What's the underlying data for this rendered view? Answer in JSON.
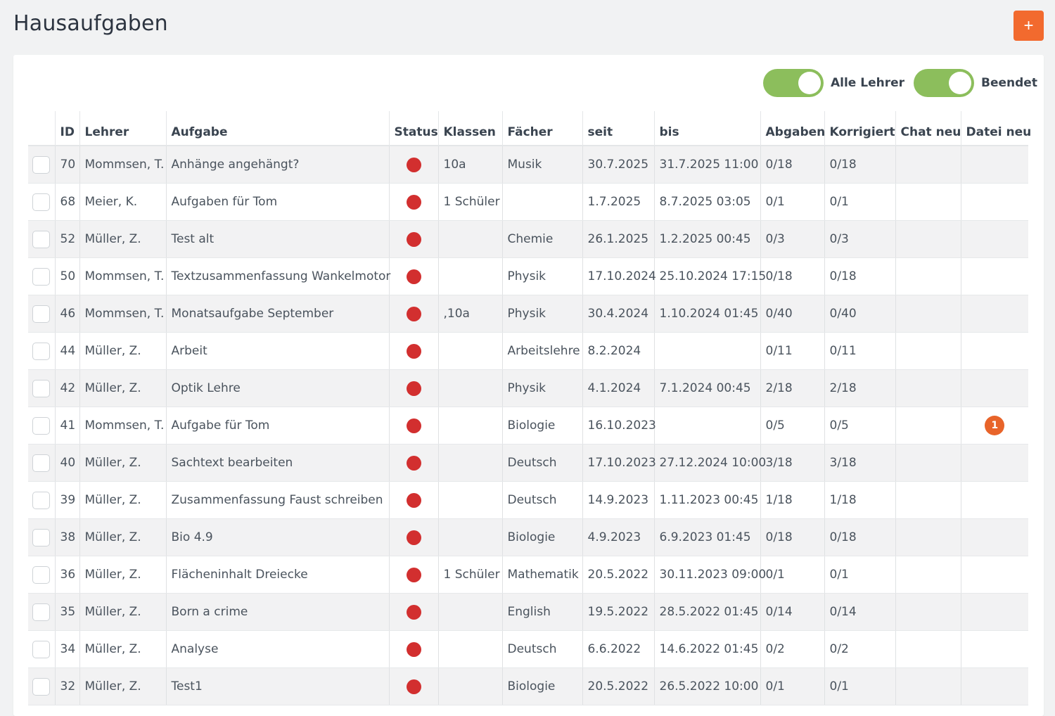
{
  "page": {
    "title": "Hausaufgaben",
    "add_button_label": "+",
    "accent_color": "#f26a2e"
  },
  "filters": {
    "all_teachers": {
      "label": "Alle Lehrer",
      "on": true
    },
    "finished": {
      "label": "Beendet",
      "on": true
    },
    "toggle_color": "#8cbe5c"
  },
  "table": {
    "columns": [
      "",
      "ID",
      "Lehrer",
      "Aufgabe",
      "Status",
      "Klassen",
      "Fächer",
      "seit",
      "bis",
      "Abgaben",
      "Korrigiert",
      "Chat neu",
      "Datei neu"
    ],
    "status_color": "#d22f2f",
    "badge_color": "#e8642a",
    "rows": [
      {
        "id": "70",
        "teacher": "Mommsen, T.",
        "task": "Anhänge angehängt?",
        "classes": "10a",
        "subjects": "Musik",
        "since": "30.7.2025",
        "until": "31.7.2025 11:00",
        "submissions": "0/18",
        "corrected": "0/18",
        "chat_new": "",
        "file_new": ""
      },
      {
        "id": "68",
        "teacher": "Meier, K.",
        "task": "Aufgaben für Tom",
        "classes": "1 Schüler",
        "subjects": "",
        "since": "1.7.2025",
        "until": "8.7.2025 03:05",
        "submissions": "0/1",
        "corrected": "0/1",
        "chat_new": "",
        "file_new": ""
      },
      {
        "id": "52",
        "teacher": "Müller, Z.",
        "task": "Test alt",
        "classes": "",
        "subjects": "Chemie",
        "since": "26.1.2025",
        "until": "1.2.2025 00:45",
        "submissions": "0/3",
        "corrected": "0/3",
        "chat_new": "",
        "file_new": ""
      },
      {
        "id": "50",
        "teacher": "Mommsen, T.",
        "task": "Textzusammenfassung Wankelmotor",
        "classes": "",
        "subjects": "Physik",
        "since": "17.10.2024",
        "until": "25.10.2024 17:15",
        "submissions": "0/18",
        "corrected": "0/18",
        "chat_new": "",
        "file_new": ""
      },
      {
        "id": "46",
        "teacher": "Mommsen, T.",
        "task": "Monatsaufgabe September",
        "classes": ",10a",
        "subjects": "Physik",
        "since": "30.4.2024",
        "until": "1.10.2024 01:45",
        "submissions": "0/40",
        "corrected": "0/40",
        "chat_new": "",
        "file_new": ""
      },
      {
        "id": "44",
        "teacher": "Müller, Z.",
        "task": "Arbeit",
        "classes": "",
        "subjects": "Arbeitslehre",
        "since": "8.2.2024",
        "until": "",
        "submissions": "0/11",
        "corrected": "0/11",
        "chat_new": "",
        "file_new": ""
      },
      {
        "id": "42",
        "teacher": "Müller, Z.",
        "task": "Optik Lehre",
        "classes": "",
        "subjects": "Physik",
        "since": "4.1.2024",
        "until": "7.1.2024 00:45",
        "submissions": "2/18",
        "corrected": "2/18",
        "chat_new": "",
        "file_new": ""
      },
      {
        "id": "41",
        "teacher": "Mommsen, T.",
        "task": "Aufgabe für Tom",
        "classes": "",
        "subjects": "Biologie",
        "since": "16.10.2023",
        "until": "",
        "submissions": "0/5",
        "corrected": "0/5",
        "chat_new": "",
        "file_new": "1"
      },
      {
        "id": "40",
        "teacher": "Müller, Z.",
        "task": "Sachtext bearbeiten",
        "classes": "",
        "subjects": "Deutsch",
        "since": "17.10.2023",
        "until": "27.12.2024 10:00",
        "submissions": "3/18",
        "corrected": "3/18",
        "chat_new": "",
        "file_new": ""
      },
      {
        "id": "39",
        "teacher": "Müller, Z.",
        "task": "Zusammenfassung Faust schreiben",
        "classes": "",
        "subjects": "Deutsch",
        "since": "14.9.2023",
        "until": "1.11.2023 00:45",
        "submissions": "1/18",
        "corrected": "1/18",
        "chat_new": "",
        "file_new": ""
      },
      {
        "id": "38",
        "teacher": "Müller, Z.",
        "task": "Bio 4.9",
        "classes": "",
        "subjects": "Biologie",
        "since": "4.9.2023",
        "until": "6.9.2023 01:45",
        "submissions": "0/18",
        "corrected": "0/18",
        "chat_new": "",
        "file_new": ""
      },
      {
        "id": "36",
        "teacher": "Müller, Z.",
        "task": "Flächeninhalt Dreiecke",
        "classes": "1 Schüler",
        "subjects": "Mathematik",
        "since": "20.5.2022",
        "until": "30.11.2023 09:00",
        "submissions": "0/1",
        "corrected": "0/1",
        "chat_new": "",
        "file_new": ""
      },
      {
        "id": "35",
        "teacher": "Müller, Z.",
        "task": "Born a crime",
        "classes": "",
        "subjects": "English",
        "since": "19.5.2022",
        "until": "28.5.2022 01:45",
        "submissions": "0/14",
        "corrected": "0/14",
        "chat_new": "",
        "file_new": ""
      },
      {
        "id": "34",
        "teacher": "Müller, Z.",
        "task": "Analyse",
        "classes": "",
        "subjects": "Deutsch",
        "since": "6.6.2022",
        "until": "14.6.2022 01:45",
        "submissions": "0/2",
        "corrected": "0/2",
        "chat_new": "",
        "file_new": ""
      },
      {
        "id": "32",
        "teacher": "Müller, Z.",
        "task": "Test1",
        "classes": "",
        "subjects": "Biologie",
        "since": "20.5.2022",
        "until": "26.5.2022 10:00",
        "submissions": "0/1",
        "corrected": "0/1",
        "chat_new": "",
        "file_new": ""
      }
    ]
  }
}
